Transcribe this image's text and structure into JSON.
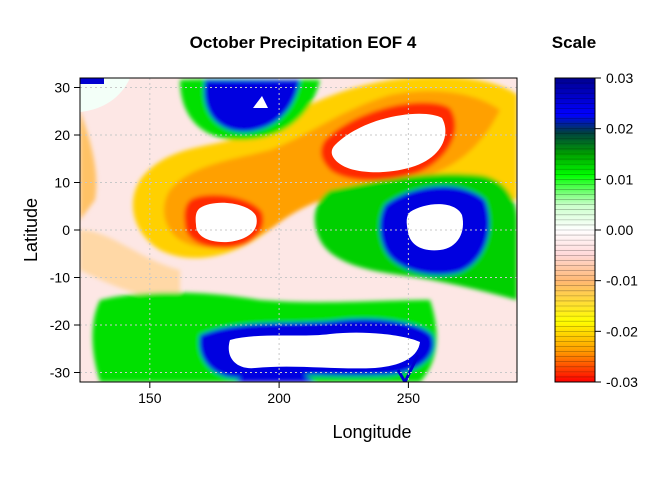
{
  "chart_data": {
    "type": "heatmap",
    "title": "October Precipitation EOF 4",
    "xlabel": "Longitude",
    "ylabel": "Latitude",
    "xlim": [
      123,
      292
    ],
    "ylim": [
      -32,
      32
    ],
    "x_ticks": [
      150,
      200,
      250
    ],
    "y_ticks": [
      30,
      20,
      10,
      0,
      -10,
      -20,
      -30
    ],
    "grid": true,
    "scale": {
      "title": "Scale",
      "range": [
        -0.03,
        0.03
      ],
      "ticks": [
        "0.03",
        "0.02",
        "0.01",
        "0.00",
        "-0.01",
        "-0.02",
        "-0.03"
      ],
      "colors_low_to_high": [
        "#ff0000",
        "#ffff00",
        "#ffffff",
        "#00ff00",
        "#0000a0"
      ]
    },
    "features": [
      {
        "lon": 180,
        "lat": 0,
        "value": -0.03
      },
      {
        "lon": 235,
        "lat": 17,
        "value": -0.03
      },
      {
        "lon": 188,
        "lat": 26,
        "value": 0.03
      },
      {
        "lon": 258,
        "lat": 1,
        "value": 0.03
      },
      {
        "lon": 225,
        "lat": -24,
        "value": 0.03
      },
      {
        "lon": 200,
        "lat": -31,
        "value": 0.03
      }
    ]
  }
}
